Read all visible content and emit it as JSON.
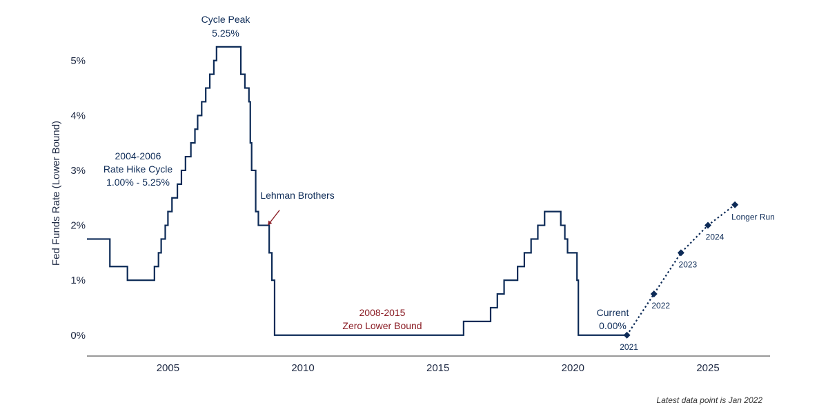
{
  "chart_data": {
    "type": "line",
    "ylabel": "Fed Funds Rate (Lower Bound)",
    "xlabel": "",
    "xlim": [
      2002,
      2027.3
    ],
    "ylim": [
      -0.38,
      5.6
    ],
    "x_ticks": [
      {
        "value": 2005,
        "label": "2005"
      },
      {
        "value": 2010,
        "label": "2010"
      },
      {
        "value": 2015,
        "label": "2015"
      },
      {
        "value": 2020,
        "label": "2020"
      },
      {
        "value": 2025,
        "label": "2025"
      }
    ],
    "y_ticks": [
      {
        "value": 0,
        "label": "0%"
      },
      {
        "value": 1,
        "label": "1%"
      },
      {
        "value": 2,
        "label": "2%"
      },
      {
        "value": 3,
        "label": "3%"
      },
      {
        "value": 4,
        "label": "4%"
      },
      {
        "value": 5,
        "label": "5%"
      }
    ],
    "series": [
      {
        "name": "Fed Funds Rate",
        "style": "step",
        "color": "#0d2b57",
        "points": [
          [
            2002.0,
            1.75
          ],
          [
            2002.85,
            1.25
          ],
          [
            2003.5,
            1.0
          ],
          [
            2004.5,
            1.25
          ],
          [
            2004.65,
            1.5
          ],
          [
            2004.75,
            1.75
          ],
          [
            2004.9,
            2.0
          ],
          [
            2005.0,
            2.25
          ],
          [
            2005.15,
            2.5
          ],
          [
            2005.35,
            2.75
          ],
          [
            2005.5,
            3.0
          ],
          [
            2005.65,
            3.25
          ],
          [
            2005.85,
            3.5
          ],
          [
            2006.0,
            3.75
          ],
          [
            2006.1,
            4.0
          ],
          [
            2006.25,
            4.25
          ],
          [
            2006.4,
            4.5
          ],
          [
            2006.55,
            4.75
          ],
          [
            2006.7,
            5.0
          ],
          [
            2006.8,
            5.25
          ],
          [
            2007.7,
            4.75
          ],
          [
            2007.85,
            4.5
          ],
          [
            2008.0,
            4.25
          ],
          [
            2008.05,
            3.5
          ],
          [
            2008.1,
            3.0
          ],
          [
            2008.25,
            2.25
          ],
          [
            2008.35,
            2.0
          ],
          [
            2008.75,
            1.5
          ],
          [
            2008.85,
            1.0
          ],
          [
            2008.95,
            0.0
          ],
          [
            2015.95,
            0.25
          ],
          [
            2016.95,
            0.5
          ],
          [
            2017.2,
            0.75
          ],
          [
            2017.45,
            1.0
          ],
          [
            2017.95,
            1.25
          ],
          [
            2018.2,
            1.5
          ],
          [
            2018.45,
            1.75
          ],
          [
            2018.7,
            2.0
          ],
          [
            2018.95,
            2.25
          ],
          [
            2019.55,
            2.0
          ],
          [
            2019.7,
            1.75
          ],
          [
            2019.8,
            1.5
          ],
          [
            2020.15,
            1.0
          ],
          [
            2020.2,
            0.0
          ],
          [
            2022.0,
            0.0
          ]
        ]
      },
      {
        "name": "Projections",
        "style": "dotted",
        "color": "#0d2b57",
        "points": [
          {
            "x": 2022.0,
            "y": 0.0,
            "label": "2021"
          },
          {
            "x": 2023.0,
            "y": 0.75,
            "label": "2022"
          },
          {
            "x": 2024.0,
            "y": 1.5,
            "label": "2023"
          },
          {
            "x": 2025.0,
            "y": 2.0,
            "label": "2024"
          },
          {
            "x": 2026.0,
            "y": 2.375,
            "label": "Longer Run"
          }
        ]
      }
    ],
    "annotations": {
      "cycle_peak": {
        "line1": "Cycle Peak",
        "line2": "5.25%"
      },
      "hike_cycle": {
        "line1": "2004-2006",
        "line2": "Rate Hike Cycle",
        "line3": "1.00% - 5.25%"
      },
      "lehman": {
        "text": "Lehman Brothers",
        "x": 2008.7,
        "y": 2.0
      },
      "zlb": {
        "line1": "2008-2015",
        "line2": "Zero Lower Bound"
      },
      "current": {
        "line1": "Current",
        "line2": "0.00%"
      }
    },
    "footnote": "Latest data point is Jan 2022"
  }
}
